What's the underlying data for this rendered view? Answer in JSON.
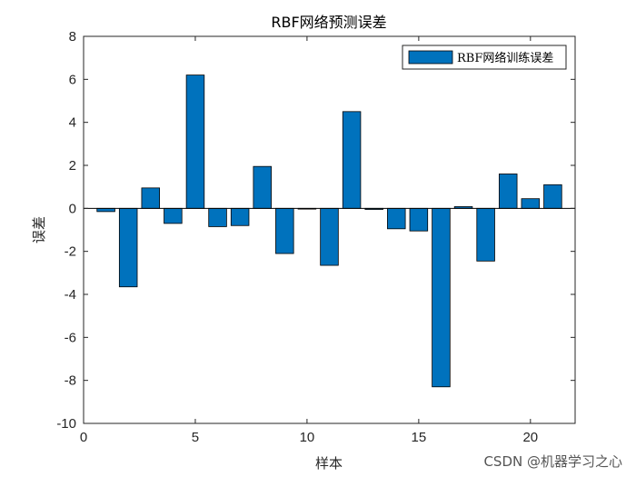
{
  "chart_data": {
    "type": "bar",
    "title": "RBF网络预测误差",
    "xlabel": "样本",
    "ylabel": "误差",
    "xlim": [
      0,
      22
    ],
    "ylim": [
      -10,
      8
    ],
    "xticks": [
      0,
      5,
      10,
      15,
      20
    ],
    "yticks": [
      -10,
      -8,
      -6,
      -4,
      -2,
      0,
      2,
      4,
      6,
      8
    ],
    "grid": false,
    "legend_position": "top-right",
    "series": [
      {
        "name": "RBF网络训练误差",
        "color": "#0072BD",
        "x": [
          1,
          2,
          3,
          4,
          5,
          6,
          7,
          8,
          9,
          10,
          11,
          12,
          13,
          14,
          15,
          16,
          17,
          18,
          19,
          20,
          21
        ],
        "values": [
          -0.15,
          -3.65,
          0.95,
          -0.7,
          6.2,
          -0.85,
          -0.8,
          1.95,
          -2.1,
          0.0,
          -2.65,
          4.5,
          -0.05,
          -0.95,
          -1.05,
          -8.3,
          0.08,
          -2.45,
          1.6,
          0.45,
          1.1
        ]
      }
    ]
  },
  "watermark": "CSDN @机器学习之心"
}
